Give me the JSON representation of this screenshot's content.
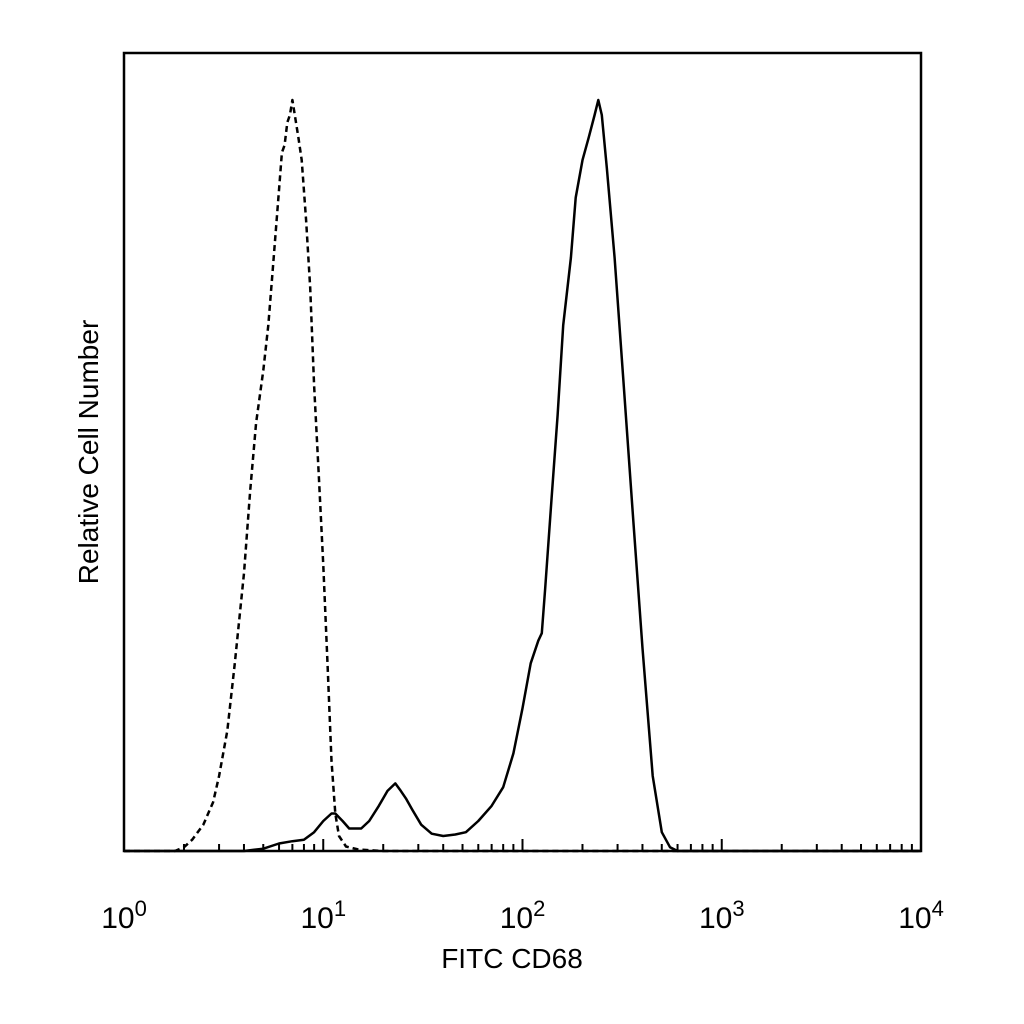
{
  "chart_data": {
    "type": "line",
    "title": "",
    "xlabel": "FITC CD68",
    "ylabel": "Relative Cell Number",
    "x_scale": "log",
    "xlim": [
      1,
      10000
    ],
    "ylim": [
      0,
      100
    ],
    "y_ticks_labeled": false,
    "grid": false,
    "legend": "none",
    "x_ticks": [
      {
        "base": "10",
        "exp": "0",
        "value": 1
      },
      {
        "base": "10",
        "exp": "1",
        "value": 10
      },
      {
        "base": "10",
        "exp": "2",
        "value": 100
      },
      {
        "base": "10",
        "exp": "3",
        "value": 1000
      },
      {
        "base": "10",
        "exp": "4",
        "value": 10000
      }
    ],
    "series": [
      {
        "style": "dashed",
        "color": "#000000",
        "x": [
          1.0,
          1.8,
          2.0,
          2.2,
          2.5,
          2.8,
          3.0,
          3.3,
          3.6,
          4.0,
          4.3,
          4.6,
          5.0,
          5.3,
          5.6,
          6.0,
          6.2,
          6.4,
          6.6,
          6.8,
          7.0,
          7.2,
          7.5,
          7.8,
          8.2,
          8.6,
          9.0,
          9.5,
          10.0,
          10.5,
          11.0,
          11.5,
          12.0,
          13.0,
          15.0,
          20.0,
          50.0,
          100.0,
          500.0,
          1000.0,
          10000.0
        ],
        "y": [
          0,
          0,
          0.5,
          1.5,
          3.5,
          6.5,
          10,
          16,
          25,
          37,
          48,
          57,
          64,
          70,
          78,
          88,
          93,
          94,
          97,
          98,
          100,
          98,
          95,
          92,
          84,
          75,
          62,
          50,
          38,
          25,
          12,
          5,
          2,
          0.6,
          0.2,
          0,
          0,
          0,
          0,
          0,
          0
        ]
      },
      {
        "style": "solid",
        "color": "#000000",
        "x": [
          1.0,
          4.0,
          5.0,
          6.0,
          7.0,
          8.0,
          9.0,
          10.0,
          11.0,
          11.5,
          12.5,
          13.5,
          14.5,
          15.5,
          17.0,
          19.0,
          21.0,
          23.0,
          24.5,
          26.0,
          28.0,
          31.0,
          35.0,
          40.0,
          46.0,
          52.0,
          60.0,
          70.0,
          80.0,
          90.0,
          100.0,
          110.0,
          120.0,
          125.0,
          130.0,
          140.0,
          150.0,
          160.0,
          175.0,
          185.0,
          200.0,
          215.0,
          230.0,
          240.0,
          250.0,
          265.0,
          290.0,
          320.0,
          360.0,
          400.0,
          450.0,
          500.0,
          550.0,
          600.0,
          800.0,
          10000.0
        ],
        "y": [
          0,
          0,
          0.3,
          1,
          1.3,
          1.5,
          2.5,
          4,
          5,
          5,
          4,
          3,
          3,
          3,
          4,
          6,
          8,
          9,
          8,
          7,
          5.5,
          3.5,
          2.3,
          2,
          2.2,
          2.5,
          4,
          6,
          8.5,
          13,
          19,
          25,
          28,
          29,
          35,
          47,
          58,
          70,
          79,
          87,
          92,
          95,
          98,
          100,
          98,
          91,
          79,
          63,
          44,
          27,
          10,
          2.5,
          0.5,
          0,
          0,
          0
        ]
      }
    ]
  }
}
